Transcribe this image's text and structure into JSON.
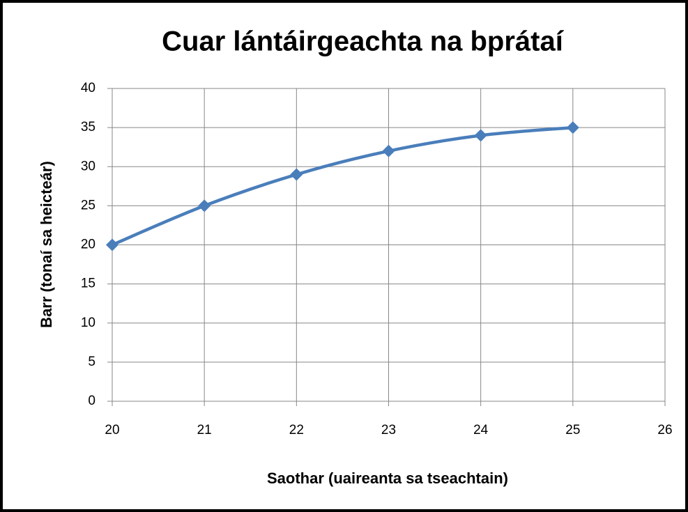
{
  "chart_data": {
    "type": "line",
    "title": "Cuar lántáirgeachta na bprátaí",
    "xlabel": "Saothar (uaireanta sa tseachtain)",
    "ylabel": "Barr (tonaí sa heicteár)",
    "x": [
      20,
      21,
      22,
      23,
      24,
      25
    ],
    "series": [
      {
        "name": "Barr",
        "color": "#4a7ebb",
        "values": [
          20,
          25,
          29,
          32,
          34,
          35
        ]
      }
    ],
    "xlim": [
      20,
      26
    ],
    "xticks": [
      20,
      21,
      22,
      23,
      24,
      25,
      26
    ],
    "ylim": [
      0,
      40
    ],
    "yticks": [
      0,
      5,
      10,
      15,
      20,
      25,
      30,
      35,
      40
    ],
    "grid": true,
    "smooth": true,
    "marker": "diamond"
  }
}
